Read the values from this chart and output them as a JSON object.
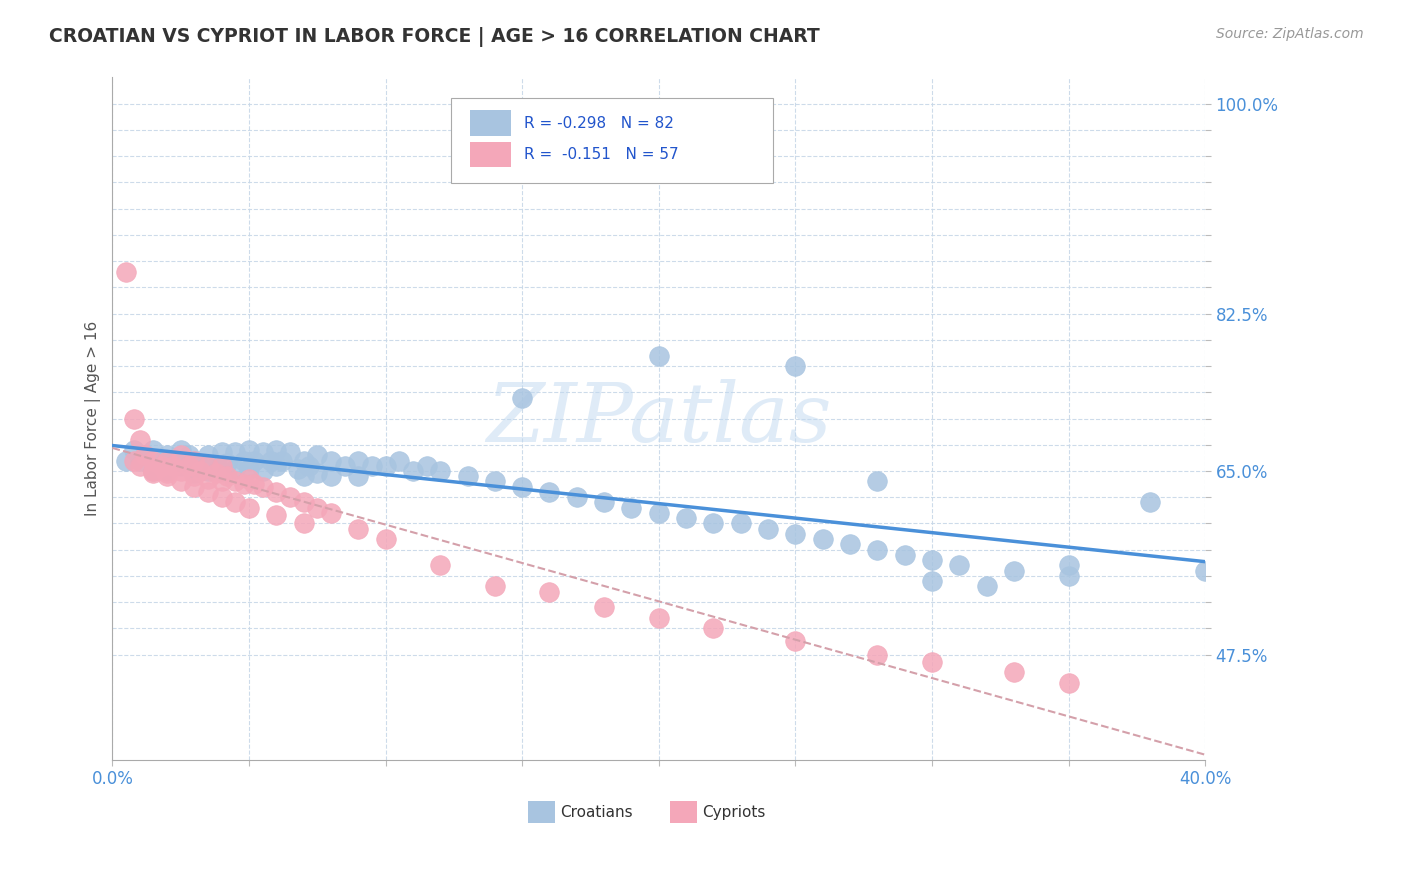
{
  "title": "CROATIAN VS CYPRIOT IN LABOR FORCE | AGE > 16 CORRELATION CHART",
  "source_text": "Source: ZipAtlas.com",
  "ylabel": "In Labor Force | Age > 16",
  "xlim": [
    0.0,
    0.4
  ],
  "ylim": [
    0.375,
    1.025
  ],
  "ytick_positions": [
    0.475,
    0.5,
    0.525,
    0.55,
    0.575,
    0.6,
    0.625,
    0.65,
    0.675,
    0.7,
    0.725,
    0.75,
    0.775,
    0.8,
    0.825,
    0.85,
    0.875,
    0.9,
    0.925,
    0.95,
    0.975,
    1.0
  ],
  "ytick_labels": [
    "47.5%",
    "",
    "",
    "",
    "",
    "",
    "",
    "65.0%",
    "",
    "",
    "",
    "",
    "",
    "82.5%",
    "",
    "",
    "",
    "",
    "",
    "",
    "",
    "100.0%"
  ],
  "xtick_positions": [
    0.0,
    0.05,
    0.1,
    0.15,
    0.2,
    0.25,
    0.3,
    0.35,
    0.4
  ],
  "xtick_labels": [
    "0.0%",
    "",
    "",
    "",
    "",
    "",
    "",
    "",
    "40.0%"
  ],
  "croatian_color": "#a8c4e0",
  "cypriot_color": "#f4a7b9",
  "trend_croatian_color": "#4a90d9",
  "trend_cypriot_color": "#d4a0aa",
  "legend_line1": "R = -0.298   N = 82",
  "legend_line2": "R =  -0.151   N = 57",
  "watermark_text": "ZIPatlas",
  "background_color": "#ffffff",
  "grid_color": "#c8d8e8",
  "croatian_x": [
    0.005,
    0.008,
    0.01,
    0.012,
    0.015,
    0.015,
    0.018,
    0.02,
    0.02,
    0.022,
    0.025,
    0.025,
    0.028,
    0.03,
    0.03,
    0.032,
    0.035,
    0.035,
    0.038,
    0.04,
    0.04,
    0.042,
    0.045,
    0.045,
    0.048,
    0.05,
    0.05,
    0.052,
    0.055,
    0.055,
    0.058,
    0.06,
    0.06,
    0.062,
    0.065,
    0.068,
    0.07,
    0.07,
    0.072,
    0.075,
    0.075,
    0.08,
    0.08,
    0.085,
    0.09,
    0.09,
    0.095,
    0.1,
    0.105,
    0.11,
    0.115,
    0.12,
    0.13,
    0.14,
    0.15,
    0.16,
    0.17,
    0.18,
    0.19,
    0.2,
    0.21,
    0.22,
    0.23,
    0.24,
    0.25,
    0.26,
    0.27,
    0.28,
    0.29,
    0.3,
    0.31,
    0.33,
    0.35,
    0.3,
    0.32,
    0.15,
    0.2,
    0.25,
    0.28,
    0.35,
    0.38,
    0.4
  ],
  "croatian_y": [
    0.66,
    0.67,
    0.66,
    0.665,
    0.67,
    0.65,
    0.66,
    0.665,
    0.65,
    0.66,
    0.67,
    0.655,
    0.665,
    0.66,
    0.648,
    0.655,
    0.665,
    0.65,
    0.655,
    0.668,
    0.65,
    0.658,
    0.668,
    0.652,
    0.66,
    0.67,
    0.652,
    0.66,
    0.668,
    0.65,
    0.66,
    0.67,
    0.655,
    0.66,
    0.668,
    0.652,
    0.66,
    0.645,
    0.655,
    0.665,
    0.648,
    0.66,
    0.645,
    0.655,
    0.66,
    0.645,
    0.655,
    0.655,
    0.66,
    0.65,
    0.655,
    0.65,
    0.645,
    0.64,
    0.635,
    0.63,
    0.625,
    0.62,
    0.615,
    0.61,
    0.605,
    0.6,
    0.6,
    0.595,
    0.59,
    0.585,
    0.58,
    0.575,
    0.57,
    0.565,
    0.56,
    0.555,
    0.55,
    0.545,
    0.54,
    0.72,
    0.76,
    0.75,
    0.64,
    0.56,
    0.62,
    0.555
  ],
  "cypriot_x": [
    0.005,
    0.008,
    0.01,
    0.012,
    0.015,
    0.015,
    0.018,
    0.02,
    0.02,
    0.022,
    0.025,
    0.025,
    0.028,
    0.03,
    0.03,
    0.032,
    0.035,
    0.035,
    0.038,
    0.04,
    0.04,
    0.042,
    0.045,
    0.048,
    0.05,
    0.052,
    0.055,
    0.06,
    0.065,
    0.07,
    0.075,
    0.08,
    0.09,
    0.1,
    0.12,
    0.14,
    0.16,
    0.18,
    0.2,
    0.22,
    0.25,
    0.28,
    0.3,
    0.33,
    0.35,
    0.008,
    0.01,
    0.015,
    0.02,
    0.025,
    0.03,
    0.035,
    0.04,
    0.045,
    0.05,
    0.06,
    0.07
  ],
  "cypriot_y": [
    0.84,
    0.7,
    0.68,
    0.665,
    0.66,
    0.65,
    0.655,
    0.66,
    0.648,
    0.655,
    0.665,
    0.65,
    0.655,
    0.66,
    0.645,
    0.65,
    0.655,
    0.642,
    0.648,
    0.655,
    0.64,
    0.645,
    0.64,
    0.638,
    0.642,
    0.638,
    0.635,
    0.63,
    0.625,
    0.62,
    0.615,
    0.61,
    0.595,
    0.585,
    0.56,
    0.54,
    0.535,
    0.52,
    0.51,
    0.5,
    0.488,
    0.475,
    0.468,
    0.458,
    0.448,
    0.66,
    0.655,
    0.648,
    0.645,
    0.64,
    0.635,
    0.63,
    0.625,
    0.62,
    0.615,
    0.608,
    0.6
  ]
}
